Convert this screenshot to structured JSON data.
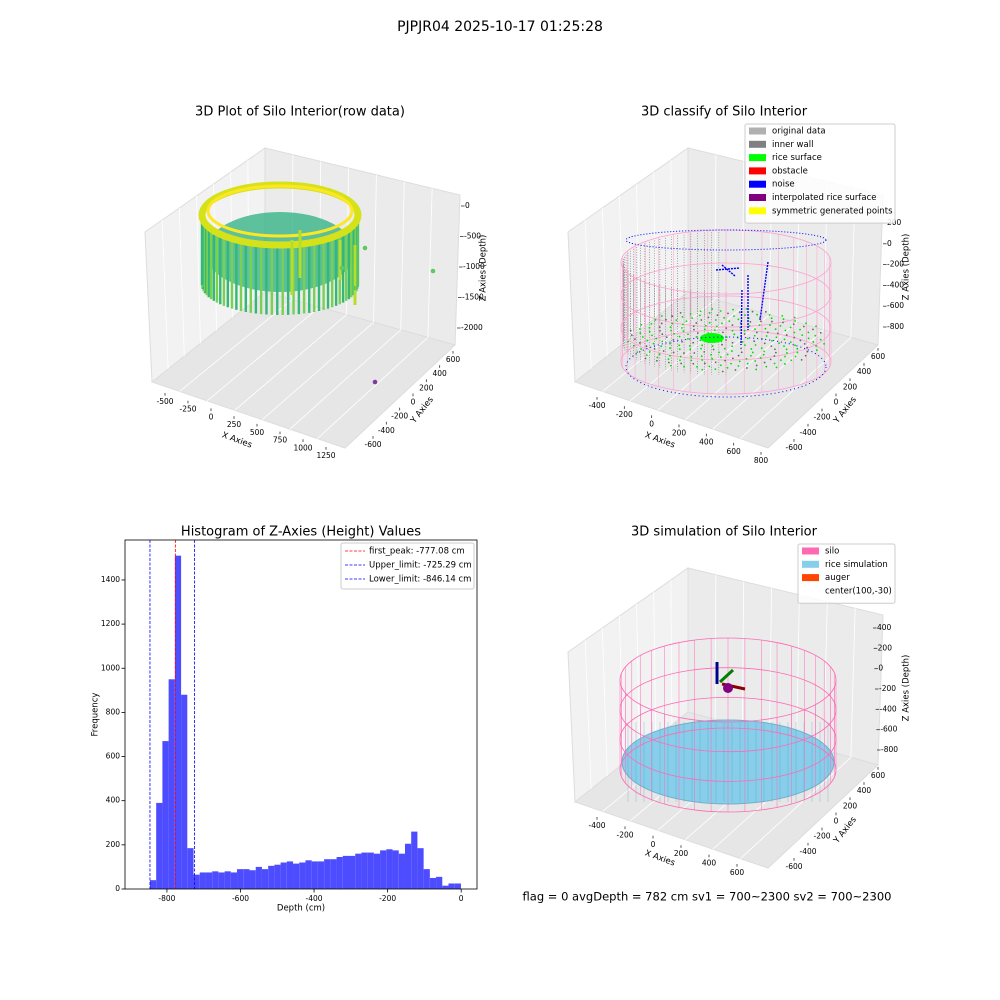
{
  "title": "PJPJR04 2025-10-17 01:25:28",
  "footer": "flag = 0     avgDepth = 782 cm  sv1 = 700~2300  sv2 = 700~2300",
  "chart_data": [
    {
      "type": "scatter3d",
      "title": "3D Plot of Silo Interior(row data)",
      "x_label": "X Axies",
      "y_label": "Y Axies",
      "z_label": "Z Axies (Depth)",
      "xticks": [
        -500,
        -250,
        0,
        250,
        500,
        750,
        1000,
        1250
      ],
      "yticks": [
        -600,
        -400,
        -200,
        0,
        200,
        400,
        600
      ],
      "zticks": [
        0,
        -500,
        -1000,
        -1500,
        -2000
      ]
    },
    {
      "type": "scatter3d",
      "title": "3D classify of Silo Interior",
      "x_label": "X Axies",
      "y_label": "Y Axies",
      "z_label": "Z Axies (Depth)",
      "xticks": [
        -400,
        -200,
        0,
        200,
        400,
        600,
        800
      ],
      "yticks": [
        -600,
        -400,
        -200,
        0,
        200,
        400,
        600
      ],
      "zticks": [
        200,
        0,
        -200,
        -400,
        -600,
        -800
      ],
      "legend_loc": "upper right",
      "legend": [
        {
          "name": "original data",
          "color": "#b0b0b0"
        },
        {
          "name": "inner wall",
          "color": "#808080"
        },
        {
          "name": "rice surface",
          "color": "#00ff00"
        },
        {
          "name": "obstacle",
          "color": "#ff0000"
        },
        {
          "name": "noise",
          "color": "#0000ff"
        },
        {
          "name": "interpolated rice surface",
          "color": "#800080"
        },
        {
          "name": "symmetric generated points",
          "color": "#ffff00"
        }
      ]
    },
    {
      "type": "histogram",
      "title": "Histogram of Z-Axies (Height) Values",
      "x_label": "Depth (cm)",
      "y_label": "Frequency",
      "color": "#4d4dff",
      "bins": [
        -846.1,
        -829.2,
        -812.3,
        -795.4,
        -778.5,
        -761.5,
        -744.6,
        -727.7,
        -710.8,
        -693.9,
        -677.0,
        -660.1,
        -643.2,
        -626.3,
        -609.4,
        -592.5,
        -575.5,
        -558.6,
        -541.7,
        -524.8,
        -507.9,
        -491.0,
        -474.1,
        -457.2,
        -440.3,
        -423.4,
        -406.5,
        -389.6,
        -372.6,
        -355.7,
        -338.8,
        -321.9,
        -305.0,
        -288.1,
        -271.2,
        -254.3,
        -237.4,
        -220.5,
        -203.6,
        -186.6,
        -169.7,
        -152.8,
        -135.9,
        -119.0,
        -102.1,
        -85.2,
        -68.3,
        -51.4,
        -34.5,
        -17.5,
        -0.6
      ],
      "counts": [
        40,
        390,
        670,
        950,
        1510,
        880,
        185,
        65,
        75,
        75,
        80,
        75,
        80,
        75,
        90,
        90,
        85,
        100,
        90,
        105,
        110,
        120,
        125,
        115,
        120,
        130,
        125,
        125,
        135,
        135,
        145,
        150,
        150,
        160,
        165,
        165,
        160,
        175,
        180,
        175,
        160,
        205,
        260,
        185,
        90,
        50,
        55,
        15,
        25,
        25
      ],
      "xlim": [
        -914,
        43
      ],
      "ylim": [
        0,
        1581
      ],
      "xticks": [
        -800,
        -600,
        -400,
        -200,
        0
      ],
      "yticks": [
        0,
        200,
        400,
        600,
        800,
        1000,
        1200,
        1400
      ],
      "legend_loc": "upper right",
      "lines": [
        {
          "name": "first_peak: -777.08 cm",
          "value": -777.08,
          "color": "#ff0000"
        },
        {
          "name": "Upper_limit: -725.29 cm",
          "value": -725.29,
          "color": "#0000ff"
        },
        {
          "name": "Lower_limit: -846.14 cm",
          "value": -846.14,
          "color": "#0000ff"
        }
      ]
    },
    {
      "type": "wireframe3d",
      "title": "3D simulation of Silo Interior",
      "x_label": "X Axies",
      "y_label": "Y Axies",
      "z_label": "Z Axies (Depth)",
      "xticks": [
        -400,
        -200,
        0,
        200,
        400,
        600
      ],
      "yticks": [
        -600,
        -400,
        -200,
        0,
        200,
        400,
        600
      ],
      "zticks": [
        400,
        200,
        0,
        -200,
        -400,
        -600,
        -800
      ],
      "legend_loc": "upper right",
      "legend": [
        {
          "name": "silo",
          "color": "#ff69b4"
        },
        {
          "name": "rice simulation",
          "color": "#87ceeb"
        },
        {
          "name": "auger",
          "color": "#ff4500"
        },
        {
          "name": "center(100,-30)",
          "color": null
        }
      ]
    }
  ]
}
